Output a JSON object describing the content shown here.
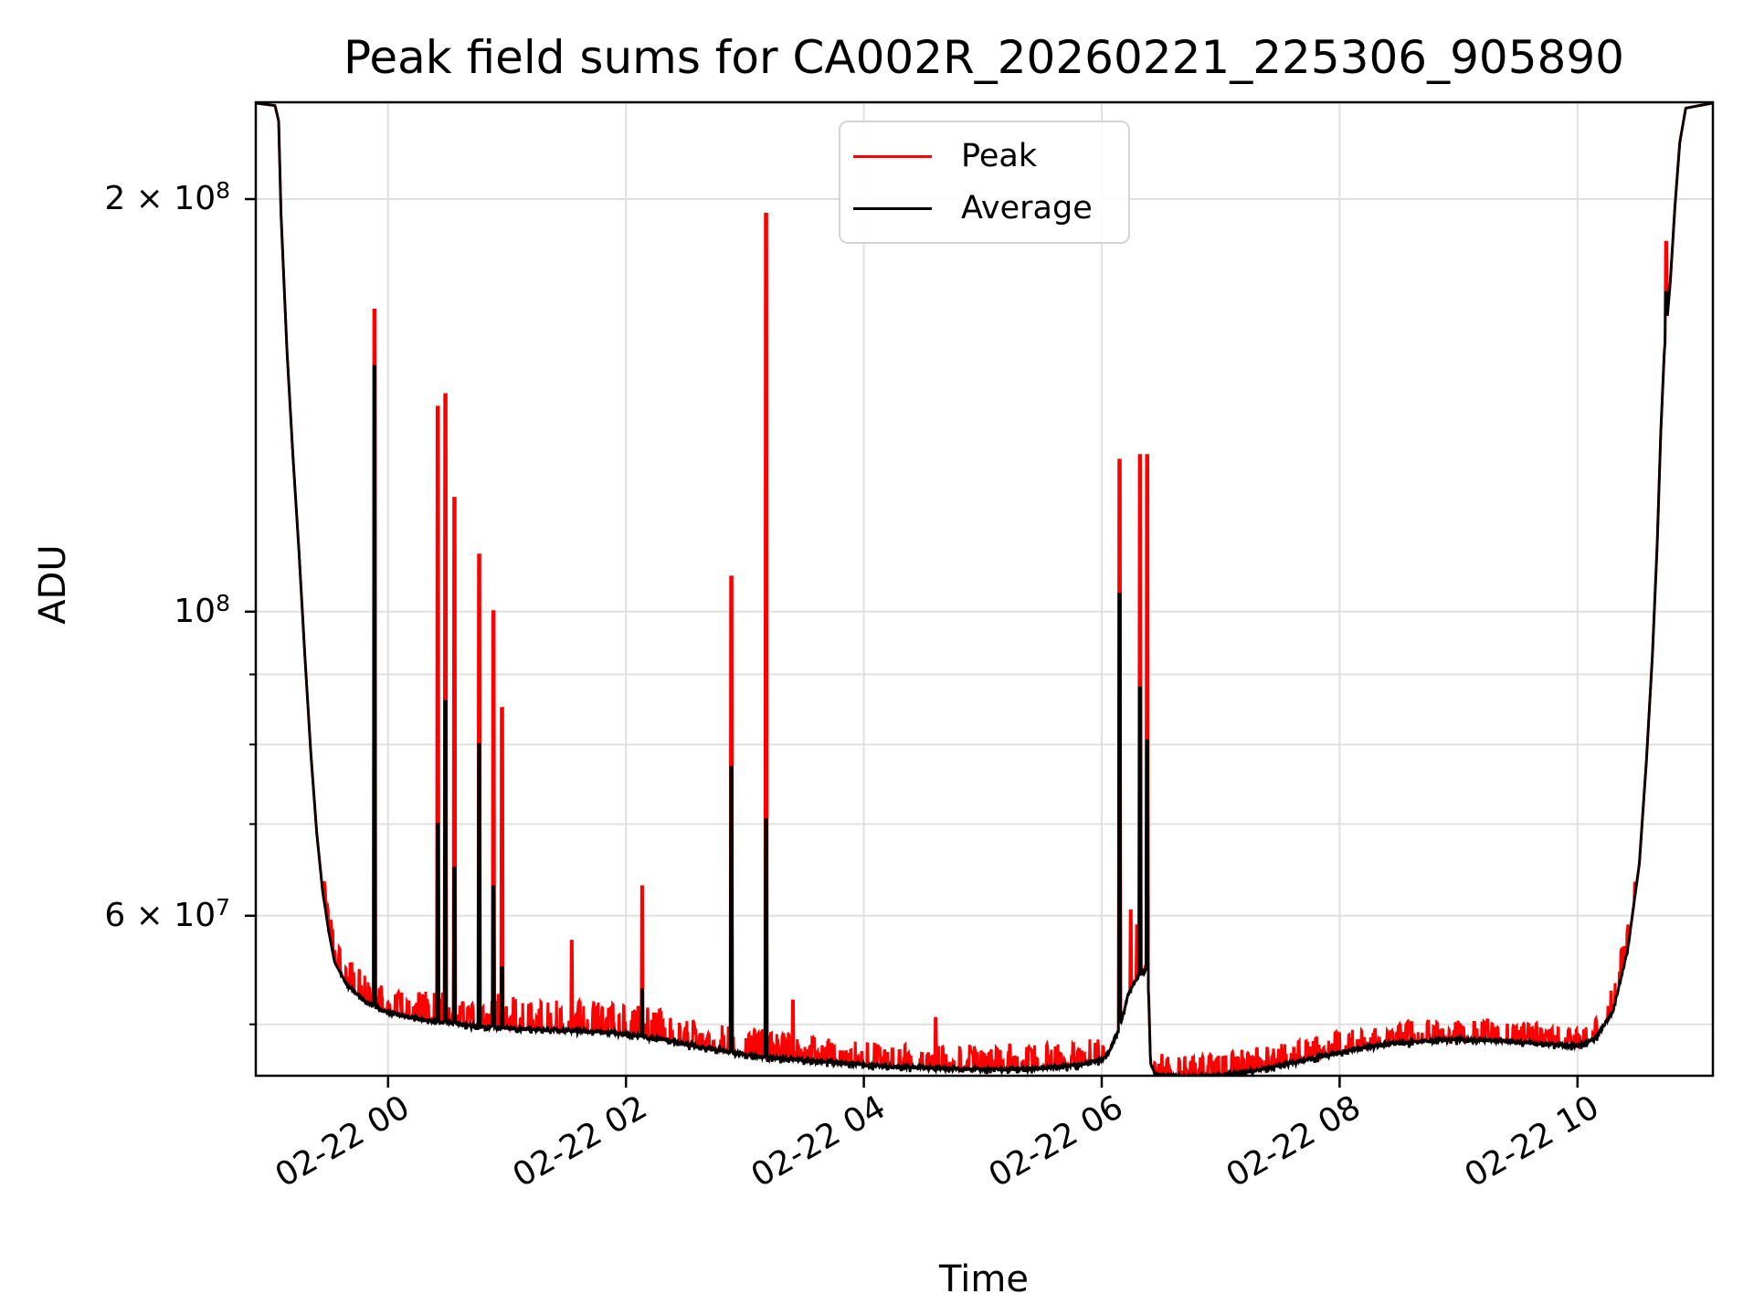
{
  "title": "Peak field sums for CA002R_20260221_225306_905890",
  "xlabel": "Time",
  "ylabel": "ADU",
  "legend": [
    {
      "label": "Peak",
      "color": "#ff0000"
    },
    {
      "label": "Average",
      "color": "#000000"
    }
  ],
  "colors": {
    "grid": "#e0e0e0",
    "spine": "#000000",
    "background": "#ffffff"
  },
  "axes": {
    "x_ticks": [
      {
        "hours": 0,
        "label": "02-22 00"
      },
      {
        "hours": 2,
        "label": "02-22 02"
      },
      {
        "hours": 4,
        "label": "02-22 04"
      },
      {
        "hours": 6,
        "label": "02-22 06"
      },
      {
        "hours": 8,
        "label": "02-22 08"
      },
      {
        "hours": 10,
        "label": "02-22 10"
      }
    ],
    "y_major_ticks": [
      {
        "value": 200000000,
        "base": "2 × 10",
        "exp": "8"
      },
      {
        "value": 100000000,
        "base": "10",
        "exp": "8"
      },
      {
        "value": 60000000,
        "base": "6 × 10",
        "exp": "7"
      }
    ],
    "y_minor_tick_values": [
      90000000,
      80000000,
      70000000,
      50000000
    ],
    "y_scale": "log",
    "x_range_hours": [
      -1.112,
      11.137
    ],
    "y_range": [
      45750000,
      235000000
    ],
    "grid": true,
    "legend_position": "upper center"
  },
  "chart_data": {
    "type": "line",
    "title": "Peak field sums for CA002R_20260221_225306_905890",
    "xlabel": "Time",
    "ylabel": "ADU",
    "x_unit": "hours since 2026-02-22 00:00",
    "ylim": [
      45750000,
      235000000
    ],
    "series": [
      {
        "name": "Average",
        "color": "#000000",
        "baseline_points": [
          [
            -1.112,
            235000000.0
          ],
          [
            -0.95,
            234000000.0
          ],
          [
            -0.92,
            228000000.0
          ],
          [
            -0.9,
            195000000.0
          ],
          [
            -0.85,
            155000000.0
          ],
          [
            -0.8,
            130000000.0
          ],
          [
            -0.75,
            111000000.0
          ],
          [
            -0.7,
            93000000.0
          ],
          [
            -0.65,
            79000000.0
          ],
          [
            -0.6,
            69000000.0
          ],
          [
            -0.55,
            62500000.0
          ],
          [
            -0.5,
            58500000.0
          ],
          [
            -0.45,
            55500000.0
          ],
          [
            -0.35,
            53500000.0
          ],
          [
            -0.2,
            52000000.0
          ],
          [
            0.0,
            51000000.0
          ],
          [
            0.3,
            50400000.0
          ],
          [
            0.7,
            49900000.0
          ],
          [
            1.1,
            49600000.0
          ],
          [
            1.5,
            49500000.0
          ],
          [
            1.9,
            49300000.0
          ],
          [
            2.3,
            48800000.0
          ],
          [
            2.7,
            48000000.0
          ],
          [
            3.1,
            47400000.0
          ],
          [
            3.6,
            47000000.0
          ],
          [
            4.2,
            46600000.0
          ],
          [
            4.8,
            46400000.0
          ],
          [
            5.4,
            46400000.0
          ],
          [
            5.8,
            46700000.0
          ],
          [
            6.0,
            47100000.0
          ],
          [
            6.06,
            47700000.0
          ],
          [
            6.1,
            48600000.0
          ],
          [
            6.14,
            49500000.0
          ],
          [
            6.18,
            50800000.0
          ],
          [
            6.22,
            52500000.0
          ],
          [
            6.28,
            53800000.0
          ],
          [
            6.34,
            54600000.0
          ],
          [
            6.38,
            55000000.0
          ],
          [
            6.395,
            52500000.0
          ],
          [
            6.41,
            46800000.0
          ],
          [
            6.45,
            46000000.0
          ],
          [
            6.7,
            45750000.0
          ],
          [
            7.0,
            45900000.0
          ],
          [
            7.3,
            46300000.0
          ],
          [
            7.7,
            47100000.0
          ],
          [
            8.1,
            47900000.0
          ],
          [
            8.5,
            48500000.0
          ],
          [
            8.9,
            48750000.0
          ],
          [
            9.3,
            48700000.0
          ],
          [
            9.7,
            48400000.0
          ],
          [
            10.0,
            48200000.0
          ],
          [
            10.15,
            48800000.0
          ],
          [
            10.3,
            51200000.0
          ],
          [
            10.42,
            56500000.0
          ],
          [
            10.52,
            65500000.0
          ],
          [
            10.58,
            78000000.0
          ],
          [
            10.63,
            93000000.0
          ],
          [
            10.67,
            112000000.0
          ],
          [
            10.7,
            135000000.0
          ],
          [
            10.73,
            155000000.0
          ],
          [
            10.755,
            164000000.0
          ],
          [
            10.78,
            174000000.0
          ],
          [
            10.82,
            198000000.0
          ],
          [
            10.86,
            220000000.0
          ],
          [
            10.91,
            233000000.0
          ],
          [
            11.137,
            235000000.0
          ]
        ]
      },
      {
        "name": "Peak",
        "color": "#ff0000",
        "spikes": [
          {
            "t": -0.12,
            "peak": 166000000.0,
            "avg": 151000000.0
          },
          {
            "t": 0.41,
            "peak": 141000000.0,
            "avg": 70000000.0
          },
          {
            "t": 0.475,
            "peak": 144000000.0,
            "avg": 86000000.0
          },
          {
            "t": 0.55,
            "peak": 121000000.0,
            "avg": 65000000.0
          },
          {
            "t": 0.76,
            "peak": 110000000.0,
            "avg": 80000000.0
          },
          {
            "t": 0.88,
            "peak": 100000000.0,
            "avg": 63000000.0
          },
          {
            "t": 0.95,
            "peak": 85000000.0,
            "avg": 55000000.0
          },
          {
            "t": 1.54,
            "peak": 57500000.0,
            "avg": null
          },
          {
            "t": 2.13,
            "peak": 63000000.0,
            "avg": 53000000.0
          },
          {
            "t": 2.88,
            "peak": 106000000.0,
            "avg": 77000000.0
          },
          {
            "t": 3.17,
            "peak": 195000000.0,
            "avg": 70500000.0
          },
          {
            "t": 3.4,
            "peak": 52000000.0,
            "avg": null
          },
          {
            "t": 4.6,
            "peak": 50500000.0,
            "avg": null
          },
          {
            "t": 6.145,
            "peak": 129000000.0,
            "avg": 103000000.0
          },
          {
            "t": 6.24,
            "peak": 60500000.0,
            "avg": null
          },
          {
            "t": 6.29,
            "peak": 59000000.0,
            "avg": null
          },
          {
            "t": 6.315,
            "peak": 130000000.0,
            "avg": 88000000.0
          },
          {
            "t": 6.375,
            "peak": 130000000.0,
            "avg": 80500000.0
          },
          {
            "t": 10.74,
            "peak": 186000000.0,
            "avg": 171000000.0
          }
        ],
        "noise_regions": [
          {
            "t0": -0.55,
            "t1": 0.1,
            "amp": 0.045,
            "p": 0.35
          },
          {
            "t0": 0.1,
            "t1": 0.9,
            "amp": 0.05,
            "p": 0.4
          },
          {
            "t0": 0.9,
            "t1": 2.3,
            "amp": 0.055,
            "p": 0.42
          },
          {
            "t0": 2.3,
            "t1": 4.0,
            "amp": 0.045,
            "p": 0.42
          },
          {
            "t0": 4.0,
            "t1": 6.02,
            "amp": 0.04,
            "p": 0.42
          },
          {
            "t0": 6.44,
            "t1": 8.2,
            "amp": 0.038,
            "p": 0.42
          },
          {
            "t0": 8.2,
            "t1": 10.15,
            "amp": 0.035,
            "p": 0.42
          },
          {
            "t0": 10.15,
            "t1": 10.5,
            "amp": 0.05,
            "p": 0.25
          }
        ]
      }
    ]
  }
}
